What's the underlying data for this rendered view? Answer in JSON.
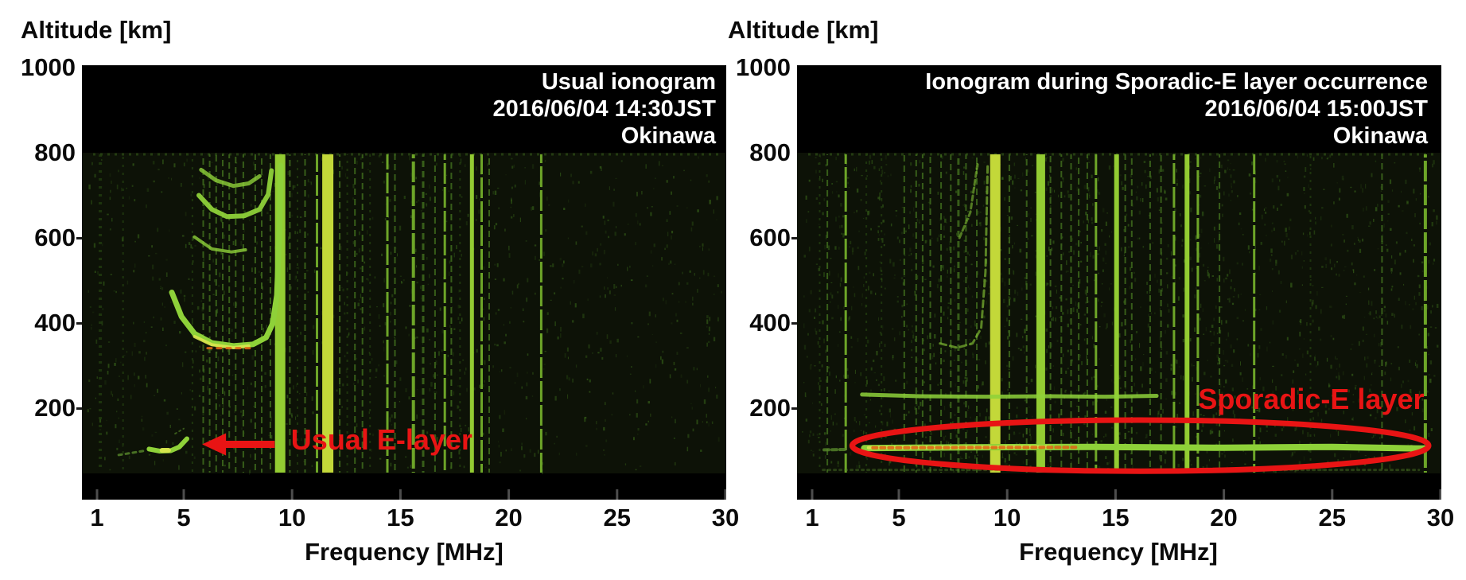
{
  "colors": {
    "red_annotation": "#e81414",
    "title_white": "#ffffff",
    "plot_background": "#000000",
    "data_region_bg": "#0d1207",
    "noise_green": "#356018",
    "stripe_dim": "#23400f",
    "stripe_mid": "#3c661c",
    "stripe_bright": "#6da528",
    "stripe_brightest": "#93cc32",
    "stripe_yellow": "#c3d839",
    "trace_green": "#8ed139",
    "trace_mid": "#57882a",
    "trace_yellow": "#d9e64e",
    "trace_orange": "#dd6616",
    "tick_mark_gray": "#4d4d4d"
  },
  "chart_data": [
    {
      "type": "heatmap",
      "title_lines": [
        "Usual ionogram",
        "2016/06/04 14:30JST",
        "Okinawa"
      ],
      "station": "Okinawa",
      "timestamp_jst": "2016/06/04 14:30JST",
      "xlabel": "Frequency [MHz]",
      "ylabel": "Altitude [km]",
      "x_ticks": [
        1,
        5,
        10,
        15,
        20,
        25,
        30
      ],
      "y_ticks": [
        1000,
        800,
        600,
        400,
        200
      ],
      "xlim": [
        1,
        30
      ],
      "ylim": [
        0,
        1000
      ],
      "data_alt_range_km": [
        50,
        800
      ],
      "grid": false,
      "legend": false,
      "noise_density": 950,
      "rfi_stripes_mhz_width_tier": [
        [
          1.15,
          4,
          "d"
        ],
        [
          2.2,
          2,
          "d"
        ],
        [
          5.4,
          2,
          "d"
        ],
        [
          5.9,
          2,
          "m"
        ],
        [
          6.2,
          2,
          "m"
        ],
        [
          6.5,
          2,
          "m"
        ],
        [
          6.8,
          2,
          "m"
        ],
        [
          7.1,
          2,
          "m"
        ],
        [
          7.4,
          2,
          "m"
        ],
        [
          7.75,
          2,
          "m"
        ],
        [
          8.3,
          2,
          "m"
        ],
        [
          8.6,
          2,
          "m"
        ],
        [
          9.0,
          2,
          "m"
        ],
        [
          9.45,
          13,
          "B"
        ],
        [
          9.9,
          2,
          "m"
        ],
        [
          10.25,
          2,
          "d"
        ],
        [
          10.6,
          2,
          "m"
        ],
        [
          11.15,
          3,
          "b"
        ],
        [
          11.65,
          14,
          "y"
        ],
        [
          12.2,
          2,
          "m"
        ],
        [
          12.55,
          2,
          "d"
        ],
        [
          12.9,
          2,
          "m"
        ],
        [
          13.25,
          2,
          "m"
        ],
        [
          13.6,
          2,
          "d"
        ],
        [
          14.4,
          3,
          "b"
        ],
        [
          14.75,
          2,
          "m"
        ],
        [
          15.6,
          4,
          "b"
        ],
        [
          16.05,
          3,
          "m"
        ],
        [
          16.6,
          2,
          "m"
        ],
        [
          17.05,
          3,
          "b"
        ],
        [
          17.35,
          2,
          "m"
        ],
        [
          17.75,
          2,
          "d"
        ],
        [
          18.3,
          5,
          "B"
        ],
        [
          18.75,
          3,
          "b"
        ],
        [
          19.1,
          2,
          "m"
        ],
        [
          21.5,
          3,
          "b"
        ]
      ],
      "traces": [
        {
          "name": "e-layer-tail",
          "points": [
            [
              2.0,
              90
            ],
            [
              2.6,
              95
            ],
            [
              3.2,
              100
            ]
          ],
          "width": 3,
          "color": "mid",
          "opacity": 0.8,
          "dash": "4 5"
        },
        {
          "name": "e-layer-main",
          "points": [
            [
              3.4,
              104
            ],
            [
              3.9,
              99
            ],
            [
              4.4,
              100
            ],
            [
              4.8,
              109
            ],
            [
              5.15,
              128
            ]
          ],
          "width": 6,
          "color": "bright",
          "opacity": 1
        },
        {
          "name": "e-layer-core",
          "points": [
            [
              4.0,
              101
            ],
            [
              4.3,
              101
            ]
          ],
          "width": 6,
          "color": "yellow",
          "opacity": 0.95
        },
        {
          "name": "e-layer-specks",
          "points": [
            [
              4.6,
              140
            ],
            [
              5.0,
              152
            ]
          ],
          "width": 2,
          "color": "mid",
          "opacity": 0.6,
          "dash": "2 4"
        },
        {
          "name": "f-layer-hop1",
          "points": [
            [
              4.45,
              472
            ],
            [
              4.9,
              415
            ],
            [
              5.5,
              375
            ],
            [
              6.3,
              353
            ],
            [
              7.3,
              346
            ],
            [
              8.2,
              350
            ],
            [
              8.8,
              366
            ],
            [
              9.1,
              398
            ],
            [
              9.3,
              465
            ],
            [
              9.42,
              620
            ],
            [
              9.48,
              770
            ]
          ],
          "width": 7,
          "color": "bright",
          "opacity": 1
        },
        {
          "name": "f-layer-hop1-core",
          "points": [
            [
              5.5,
              368
            ],
            [
              6.3,
              349
            ],
            [
              7.3,
              342
            ],
            [
              8.0,
              346
            ]
          ],
          "width": 4,
          "color": "yellow",
          "opacity": 0.9
        },
        {
          "name": "f-layer-hop1-orange",
          "points": [
            [
              6.1,
              341
            ],
            [
              8.1,
              341
            ]
          ],
          "width": 3,
          "color": "orange",
          "opacity": 0.9,
          "dash": "5 7"
        },
        {
          "name": "f-layer-hop2",
          "points": [
            [
              5.7,
              700
            ],
            [
              6.3,
              667
            ],
            [
              7.0,
              650
            ],
            [
              7.8,
              652
            ],
            [
              8.5,
              667
            ],
            [
              8.9,
              702
            ],
            [
              9.05,
              758
            ]
          ],
          "width": 6,
          "color": "bright",
          "opacity": 0.95
        },
        {
          "name": "f-layer-hop2-upper",
          "points": [
            [
              5.8,
              760
            ],
            [
              6.5,
              735
            ],
            [
              7.3,
              722
            ],
            [
              8.0,
              728
            ],
            [
              8.5,
              745
            ]
          ],
          "width": 5,
          "color": "bright",
          "opacity": 0.8
        },
        {
          "name": "f-layer-fragment",
          "points": [
            [
              5.5,
              602
            ],
            [
              6.3,
              574
            ],
            [
              7.2,
              567
            ],
            [
              7.85,
              572
            ]
          ],
          "width": 4,
          "color": "bright",
          "opacity": 0.8
        }
      ],
      "annotation": {
        "text": "Usual E-layer",
        "font_px": 36,
        "text_anchor": "start",
        "text_mhz": 9.95,
        "text_alt_km": 127,
        "arrow": {
          "tail_mhz": 9.2,
          "tip_mhz": 5.85,
          "alt_km": 115
        }
      }
    },
    {
      "type": "heatmap",
      "title_lines": [
        "Ionogram during Sporadic-E layer occurrence",
        "2016/06/04 15:00JST",
        "Okinawa"
      ],
      "station": "Okinawa",
      "timestamp_jst": "2016/06/04 15:00JST",
      "xlabel": "Frequency [MHz]",
      "ylabel": "Altitude [km]",
      "x_ticks": [
        1,
        5,
        10,
        15,
        20,
        25,
        30
      ],
      "y_ticks": [
        1000,
        800,
        600,
        400,
        200
      ],
      "xlim": [
        1,
        30
      ],
      "ylim": [
        0,
        1000
      ],
      "data_alt_range_km": [
        50,
        800
      ],
      "grid": false,
      "legend": false,
      "noise_density": 1750,
      "rfi_stripes_mhz_width_tier": [
        [
          1.35,
          2,
          "d"
        ],
        [
          1.7,
          2,
          "m"
        ],
        [
          2.55,
          3,
          "b"
        ],
        [
          3.5,
          2,
          "d"
        ],
        [
          4.2,
          2,
          "d"
        ],
        [
          5.25,
          2,
          "m"
        ],
        [
          5.8,
          2,
          "m"
        ],
        [
          6.1,
          2,
          "m"
        ],
        [
          6.45,
          2,
          "m"
        ],
        [
          6.95,
          2,
          "m"
        ],
        [
          7.4,
          2,
          "m"
        ],
        [
          7.75,
          3,
          "m"
        ],
        [
          8.1,
          2,
          "m"
        ],
        [
          8.6,
          2,
          "m"
        ],
        [
          9.45,
          13,
          "y"
        ],
        [
          10.1,
          2,
          "m"
        ],
        [
          10.9,
          2,
          "m"
        ],
        [
          11.55,
          11,
          "B"
        ],
        [
          12.0,
          2,
          "m"
        ],
        [
          12.5,
          2,
          "m"
        ],
        [
          12.95,
          2,
          "m"
        ],
        [
          13.3,
          2,
          "m"
        ],
        [
          13.7,
          2,
          "m"
        ],
        [
          14.1,
          3,
          "b"
        ],
        [
          15.05,
          6,
          "B"
        ],
        [
          15.45,
          2,
          "m"
        ],
        [
          15.75,
          2,
          "m"
        ],
        [
          16.6,
          2,
          "m"
        ],
        [
          17.1,
          2,
          "m"
        ],
        [
          17.7,
          3,
          "b"
        ],
        [
          18.3,
          6,
          "B"
        ],
        [
          18.8,
          3,
          "b"
        ],
        [
          19.8,
          2,
          "m"
        ],
        [
          21.4,
          3,
          "b"
        ],
        [
          24.0,
          2,
          "d"
        ],
        [
          27.3,
          2,
          "m"
        ],
        [
          29.3,
          4,
          "b"
        ]
      ],
      "traces": [
        {
          "name": "sporadic-e-dim-tail",
          "points": [
            [
              1.55,
              102
            ],
            [
              2.6,
              103
            ]
          ],
          "width": 4,
          "color": "mid",
          "opacity": 0.8,
          "dash": "6 4"
        },
        {
          "name": "sporadic-e-main",
          "points": [
            [
              3.4,
              106
            ],
            [
              8.0,
              108
            ],
            [
              14.0,
              109
            ],
            [
              20.0,
              107
            ],
            [
              25.0,
              109
            ],
            [
              29.25,
              105
            ]
          ],
          "width": 8,
          "color": "bright",
          "opacity": 1
        },
        {
          "name": "sporadic-e-core",
          "points": [
            [
              3.6,
              107
            ],
            [
              8.0,
              108
            ],
            [
              12.0,
              109
            ]
          ],
          "width": 4,
          "color": "yellow",
          "opacity": 0.95
        },
        {
          "name": "sporadic-e-orange",
          "points": [
            [
              3.8,
              107
            ],
            [
              13.3,
              108
            ]
          ],
          "width": 4,
          "color": "orange",
          "opacity": 0.9,
          "dash": "5 5"
        },
        {
          "name": "band-230km",
          "points": [
            [
              3.3,
              232
            ],
            [
              6.0,
              228
            ],
            [
              9.0,
              227
            ],
            [
              12.0,
              228
            ],
            [
              14.5,
              227
            ],
            [
              16.9,
              229
            ]
          ],
          "width": 5,
          "color": "bright",
          "opacity": 0.85
        },
        {
          "name": "f-trace-fragment",
          "points": [
            [
              6.9,
              352
            ],
            [
              7.7,
              342
            ],
            [
              8.4,
              352
            ],
            [
              8.8,
              388
            ],
            [
              9.0,
              520
            ],
            [
              9.05,
              650
            ],
            [
              9.1,
              768
            ]
          ],
          "width": 3,
          "color": "bright",
          "opacity": 0.6,
          "dash": "8 5"
        },
        {
          "name": "f-trace-hop2-fragment",
          "points": [
            [
              7.8,
              600
            ],
            [
              8.3,
              660
            ],
            [
              8.65,
              780
            ]
          ],
          "width": 3,
          "color": "bright",
          "opacity": 0.55,
          "dash": "6 4"
        },
        {
          "name": "ground-clutter",
          "points": [
            [
              1.5,
              55
            ],
            [
              29.0,
              55
            ]
          ],
          "width": 3,
          "color": "mid",
          "opacity": 0.4,
          "dash": "2 5"
        }
      ],
      "annotation": {
        "text": "Sporadic-E layer",
        "font_px": 36,
        "text_anchor": "end",
        "text_mhz": 29.25,
        "text_alt_km": 222,
        "ellipse": {
          "center_mhz": 16.15,
          "center_alt_km": 112,
          "rx_mhz": 13.3,
          "ry_km": 60,
          "stroke_px": 7
        }
      }
    }
  ]
}
